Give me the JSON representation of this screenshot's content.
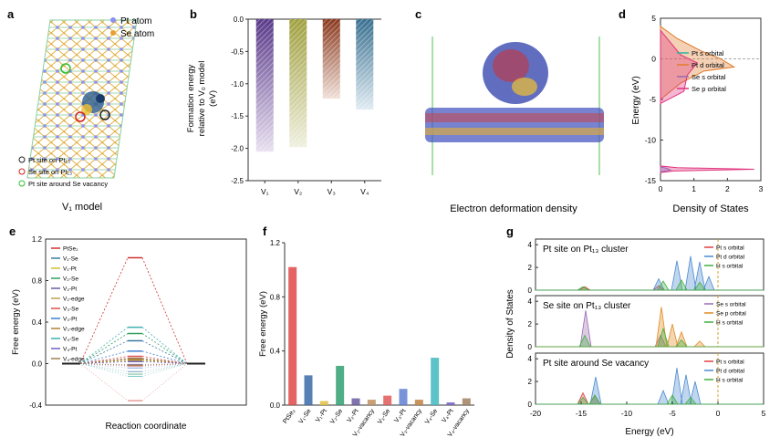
{
  "panel_letters": [
    "a",
    "b",
    "c",
    "d",
    "e",
    "f",
    "g"
  ],
  "panel_a": {
    "legend": [
      "Pt atom",
      "Se atom"
    ],
    "site_legend": [
      "Pt site on Pt₁₃",
      "Se site on Pt₁₃",
      "Pt site around Se vacancy"
    ],
    "caption": "V₁ model",
    "colors": {
      "pt": "#8c8ff0",
      "se": "#e8a030"
    }
  },
  "panel_c": {
    "caption": "Electron deformation density"
  },
  "chart_data": [
    {
      "panel": "b",
      "type": "bar",
      "ylabel": "Formation energy relative to V₀ model (eV)",
      "ylabel_lines": [
        "Formation energy",
        "relative to V₀ model",
        "(eV)"
      ],
      "categories": [
        "V₁",
        "V₂",
        "V₃",
        "V₄"
      ],
      "values": [
        -2.05,
        -1.98,
        -1.23,
        -1.4
      ],
      "ylim": [
        -2.5,
        0
      ],
      "yticks": [
        "0.0",
        "-0.5",
        "-1.0",
        "-1.5",
        "-2.0",
        "-2.5"
      ],
      "colors": [
        "#7a5aa6",
        "#a8a85a",
        "#a0523a",
        "#5a8aa6"
      ]
    },
    {
      "panel": "d",
      "type": "area",
      "xlabel": "Density of States",
      "ylabel": "Energy (eV)",
      "xlim": [
        0,
        3
      ],
      "ylim": [
        -15,
        5
      ],
      "xticks": [
        "0",
        "1",
        "2",
        "3"
      ],
      "yticks": [
        "5",
        "0",
        "-5",
        "-10",
        "-15"
      ],
      "legend": [
        "Pt s orbital",
        "Pt d orbital",
        "Se s orbital",
        "Se p orbital"
      ],
      "colors": [
        "#2bb5a0",
        "#e07a2a",
        "#9a6ab0",
        "#e0307a"
      ]
    },
    {
      "panel": "e",
      "type": "line",
      "xlabel": "Reaction coordinate",
      "ylabel": "Free energy (eV)",
      "ylim": [
        -0.4,
        1.2
      ],
      "yticks": [
        "1.2",
        "0.8",
        "0.4",
        "0.0",
        "-0.4"
      ],
      "legend": [
        "PtSe₂",
        "V₁-Se",
        "V₁-Pt",
        "V₂-Se",
        "V₂-Pt",
        "V₂-edge",
        "V₃-Se",
        "V₃-Pt",
        "V₃-edge",
        "V₄-Se",
        "V₄-Pt",
        "V₄-edge"
      ],
      "values": [
        1.02,
        0.22,
        0.03,
        0.29,
        0.05,
        0.04,
        0.07,
        0.12,
        0.04,
        0.35,
        0.02,
        0.05
      ],
      "colors": [
        "#d03030",
        "#3a7aa0",
        "#d0c030",
        "#30a060",
        "#6a5aa0",
        "#c0a050",
        "#e05050",
        "#4080d0",
        "#b08030",
        "#40b0b0",
        "#7060c0",
        "#a08050"
      ]
    },
    {
      "panel": "f",
      "type": "bar",
      "ylabel": "Free energy (eV)",
      "ylim": [
        0,
        1.2
      ],
      "yticks": [
        "0.0",
        "0.4",
        "0.8",
        "1.2"
      ],
      "categories": [
        "PtSe₂",
        "V₁-Se",
        "V₁-Pt",
        "V₂-Se",
        "V₂-Pt",
        "V₂-vacancy",
        "V₃-Se",
        "V₃-Pt",
        "V₃-vacancy",
        "V₄-Se",
        "V₄-Pt",
        "V₄-vacancy"
      ],
      "values": [
        1.02,
        0.22,
        0.03,
        0.29,
        0.05,
        0.04,
        0.07,
        0.12,
        0.04,
        0.35,
        0.02,
        0.05
      ],
      "colors": [
        "#e04848",
        "#3a6aa8",
        "#e0c040",
        "#30a070",
        "#6a5aa0",
        "#c09060",
        "#e05858",
        "#6080d0",
        "#c08040",
        "#40b8c0",
        "#7060c0",
        "#a08060"
      ]
    },
    {
      "panel": "g",
      "type": "area",
      "xlabel": "Energy (eV)",
      "ylabel": "Density of States",
      "xlim": [
        -20,
        5
      ],
      "xticks": [
        "-20",
        "-15",
        "-10",
        "-5",
        "0",
        "5"
      ],
      "subplots": [
        {
          "title": "Pt site on Pt₁₃ cluster",
          "yticks": [
            "4",
            "2",
            "0"
          ],
          "legend": [
            "Pt s orbital",
            "Pt d orbital",
            "H s orbital"
          ]
        },
        {
          "title": "Se site on Pt₁₃ cluster",
          "yticks": [
            "4",
            "2",
            "0"
          ],
          "legend": [
            "Se s orbital",
            "Se p orbital",
            "H s orbital"
          ]
        },
        {
          "title": "Pt site around Se vacancy",
          "yticks": [
            "4",
            "2",
            "0"
          ],
          "legend": [
            "Pt s orbital",
            "Pt d orbital",
            "H s orbital"
          ]
        }
      ]
    }
  ]
}
